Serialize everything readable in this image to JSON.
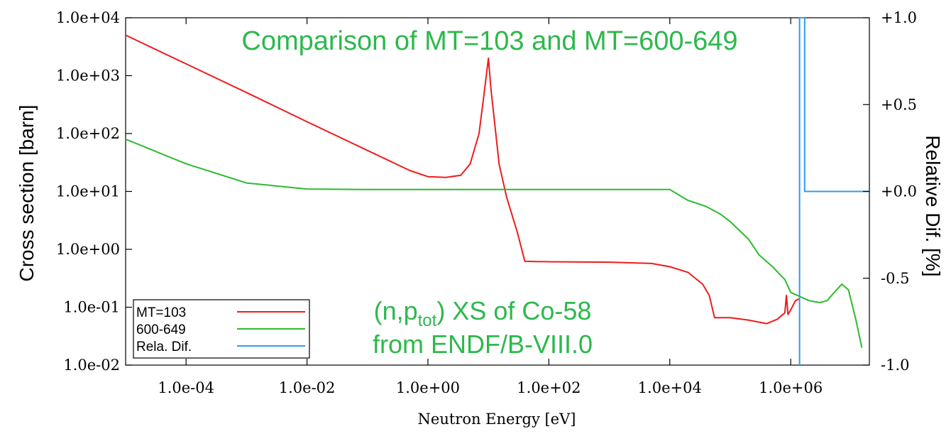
{
  "chart_data": {
    "type": "line",
    "title": "Comparison of MT=103 and MT=600-649",
    "annotation": {
      "line1_prefix": "(n,p",
      "line1_sub": "tot",
      "line1_suffix": ") XS of Co-58",
      "line2": "from ENDF/B-VIII.0"
    },
    "xlabel": "Neutron Energy [eV]",
    "ylabel": "Cross section [barn]",
    "y2label": "Relative Dif. [%]",
    "xscale": "log",
    "yscale": "log",
    "xlim": [
      1e-05,
      20000000
    ],
    "ylim": [
      0.01,
      10000
    ],
    "y2lim": [
      -1.0,
      1.0
    ],
    "grid": false,
    "legend_position": "bottom-left",
    "x_ticks": [
      {
        "value": 0.0001,
        "label": "1.0e-04"
      },
      {
        "value": 0.01,
        "label": "1.0e-02"
      },
      {
        "value": 1,
        "label": "1.0e+00"
      },
      {
        "value": 100,
        "label": "1.0e+02"
      },
      {
        "value": 10000,
        "label": "1.0e+04"
      },
      {
        "value": 1000000,
        "label": "1.0e+06"
      }
    ],
    "y_ticks": [
      {
        "value": 10000,
        "label": "1.0e+04"
      },
      {
        "value": 1000,
        "label": "1.0e+03"
      },
      {
        "value": 100,
        "label": "1.0e+02"
      },
      {
        "value": 10,
        "label": "1.0e+01"
      },
      {
        "value": 1,
        "label": "1.0e+00"
      },
      {
        "value": 0.1,
        "label": "1.0e-01"
      },
      {
        "value": 0.01,
        "label": "1.0e-02"
      }
    ],
    "y2_ticks": [
      {
        "value": 1.0,
        "label": "+1.0"
      },
      {
        "value": 0.5,
        "label": "+0.5"
      },
      {
        "value": 0.0,
        "label": "+0.0"
      },
      {
        "value": -0.5,
        "label": "-0.5"
      },
      {
        "value": -1.0,
        "label": "-1.0"
      }
    ],
    "series": [
      {
        "name": "MT=103",
        "color": "#ee1c1c",
        "axis": "left",
        "points": [
          [
            1e-05,
            5000
          ],
          [
            0.0001,
            1600
          ],
          [
            0.001,
            510
          ],
          [
            0.01,
            160
          ],
          [
            0.1,
            51
          ],
          [
            0.5,
            23
          ],
          [
            1,
            18
          ],
          [
            2,
            17.5
          ],
          [
            3.5,
            19
          ],
          [
            5,
            30
          ],
          [
            7,
            100
          ],
          [
            8.5,
            500
          ],
          [
            10,
            2000
          ],
          [
            11,
            600
          ],
          [
            13,
            120
          ],
          [
            15,
            30
          ],
          [
            20,
            8
          ],
          [
            30,
            2
          ],
          [
            40,
            0.62
          ],
          [
            100,
            0.61
          ],
          [
            1000,
            0.6
          ],
          [
            5000,
            0.57
          ],
          [
            10000,
            0.5
          ],
          [
            20000,
            0.4
          ],
          [
            35000,
            0.25
          ],
          [
            45000,
            0.16
          ],
          [
            55000,
            0.066
          ],
          [
            100000,
            0.066
          ],
          [
            200000,
            0.06
          ],
          [
            400000,
            0.052
          ],
          [
            600000,
            0.062
          ],
          [
            800000,
            0.08
          ],
          [
            850000,
            0.16
          ],
          [
            900000,
            0.075
          ],
          [
            1000000,
            0.09
          ],
          [
            1200000,
            0.13
          ],
          [
            1400000,
            0.14
          ]
        ]
      },
      {
        "name": "600-649",
        "color": "#2cbb2c",
        "axis": "left",
        "points": [
          [
            1e-05,
            80
          ],
          [
            0.0001,
            30
          ],
          [
            0.001,
            14
          ],
          [
            0.01,
            11
          ],
          [
            0.1,
            10.8
          ],
          [
            10,
            10.8
          ],
          [
            1000,
            10.8
          ],
          [
            10000,
            10.8
          ],
          [
            20000,
            7
          ],
          [
            40000,
            5.5
          ],
          [
            70000,
            4
          ],
          [
            100000,
            3
          ],
          [
            200000,
            1.5
          ],
          [
            300000,
            0.8
          ],
          [
            500000,
            0.5
          ],
          [
            800000,
            0.3
          ],
          [
            1000000,
            0.18
          ],
          [
            2000000,
            0.13
          ],
          [
            3000000,
            0.12
          ],
          [
            4000000,
            0.13
          ],
          [
            5000000,
            0.17
          ],
          [
            7000000,
            0.25
          ],
          [
            9000000,
            0.2
          ],
          [
            12000000,
            0.06
          ],
          [
            15000000,
            0.02
          ]
        ]
      },
      {
        "name": "Rela. Dif.",
        "color": "#3399ee",
        "axis": "right",
        "points": [
          [
            1400000,
            -1.0
          ],
          [
            1400000,
            1.0
          ],
          [
            1700000,
            1.0
          ],
          [
            1700000,
            0.0
          ],
          [
            20000000,
            0.0
          ]
        ]
      }
    ]
  }
}
